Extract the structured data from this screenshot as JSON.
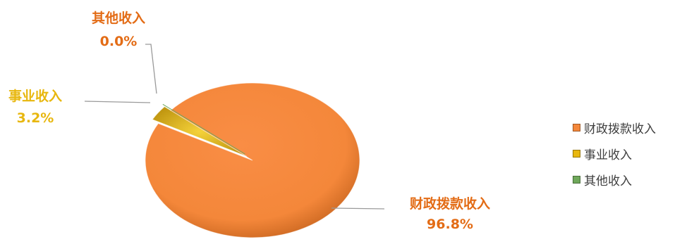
{
  "chart_data": {
    "type": "pie",
    "title": "",
    "slices": [
      {
        "label": "财政拨款收入",
        "value": 96.8,
        "value_text": "96.8%",
        "color": "#F4873A",
        "label_color": "#E36C16"
      },
      {
        "label": "事业收入",
        "value": 3.2,
        "value_text": "3.2%",
        "color": "#E8B70F",
        "label_color": "#E8B70F"
      },
      {
        "label": "其他收入",
        "value": 0.0,
        "value_text": "0.0%",
        "color": "#6FA85A",
        "label_color": "#E36C16"
      }
    ],
    "legend": {
      "position": "right",
      "items": [
        "财政拨款收入",
        "事业收入",
        "其他收入"
      ]
    }
  }
}
